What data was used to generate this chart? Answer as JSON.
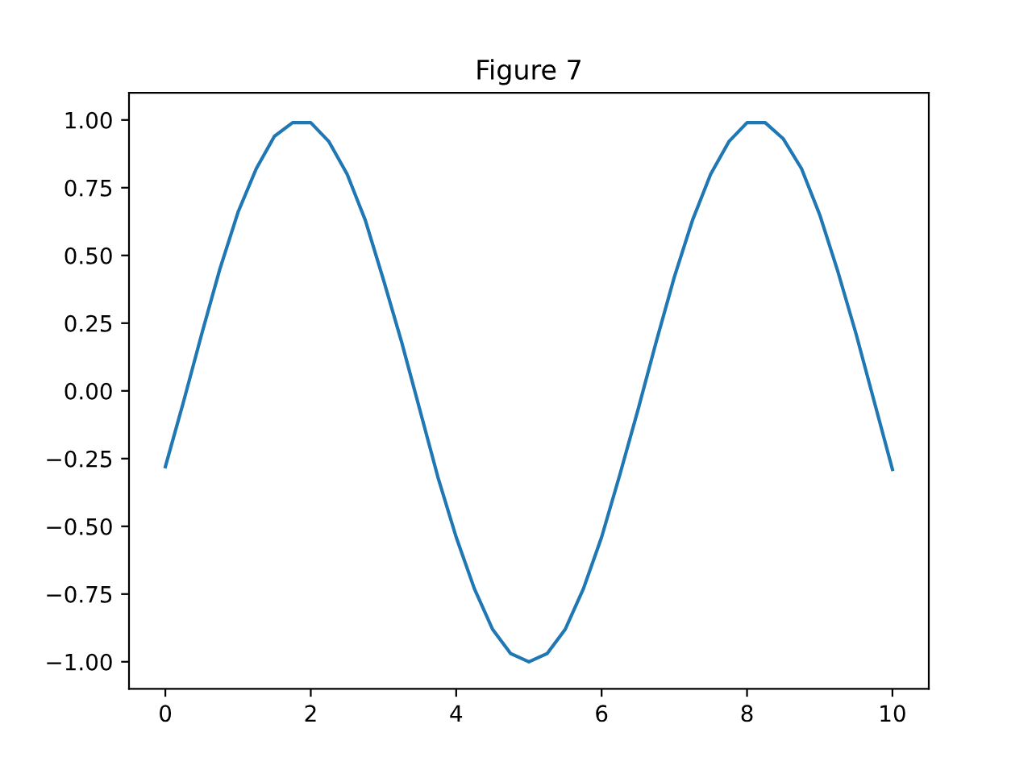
{
  "chart_data": {
    "type": "line",
    "title": "Figure 7",
    "x": [
      0,
      0.25,
      0.5,
      0.75,
      1,
      1.25,
      1.5,
      1.75,
      2,
      2.25,
      2.5,
      2.75,
      3,
      3.25,
      3.5,
      3.75,
      4,
      4.25,
      4.5,
      4.75,
      5,
      5.25,
      5.5,
      5.75,
      6,
      6.25,
      6.5,
      6.75,
      7,
      7.25,
      7.5,
      7.75,
      8,
      8.25,
      8.5,
      8.75,
      9,
      9.25,
      9.5,
      9.75,
      10
    ],
    "series": [
      {
        "color": "#1f77b4",
        "values": [
          -0.28,
          -0.04,
          0.21,
          0.45,
          0.66,
          0.82,
          0.94,
          0.99,
          0.99,
          0.92,
          0.8,
          0.63,
          0.41,
          0.18,
          -0.07,
          -0.32,
          -0.54,
          -0.73,
          -0.88,
          -0.97,
          -1.0,
          -0.97,
          -0.88,
          -0.73,
          -0.54,
          -0.31,
          -0.07,
          0.18,
          0.42,
          0.63,
          0.8,
          0.92,
          0.99,
          0.99,
          0.93,
          0.82,
          0.65,
          0.44,
          0.21,
          -0.04,
          -0.29
        ]
      }
    ],
    "xlim": [
      -0.5,
      10.5
    ],
    "ylim": [
      -1.1,
      1.1
    ],
    "xticks": [
      0,
      2,
      4,
      6,
      8,
      10
    ],
    "yticks": [
      {
        "value": -1,
        "label": "−1.00"
      },
      {
        "value": -0.75,
        "label": "−0.75"
      },
      {
        "value": -0.5,
        "label": "−0.50"
      },
      {
        "value": -0.25,
        "label": "−0.25"
      },
      {
        "value": 0,
        "label": "0.00"
      },
      {
        "value": 0.25,
        "label": "0.25"
      },
      {
        "value": 0.5,
        "label": "0.50"
      },
      {
        "value": 0.75,
        "label": "0.75"
      },
      {
        "value": 1,
        "label": "1.00"
      }
    ],
    "marker": "none",
    "line_style": "solid"
  }
}
